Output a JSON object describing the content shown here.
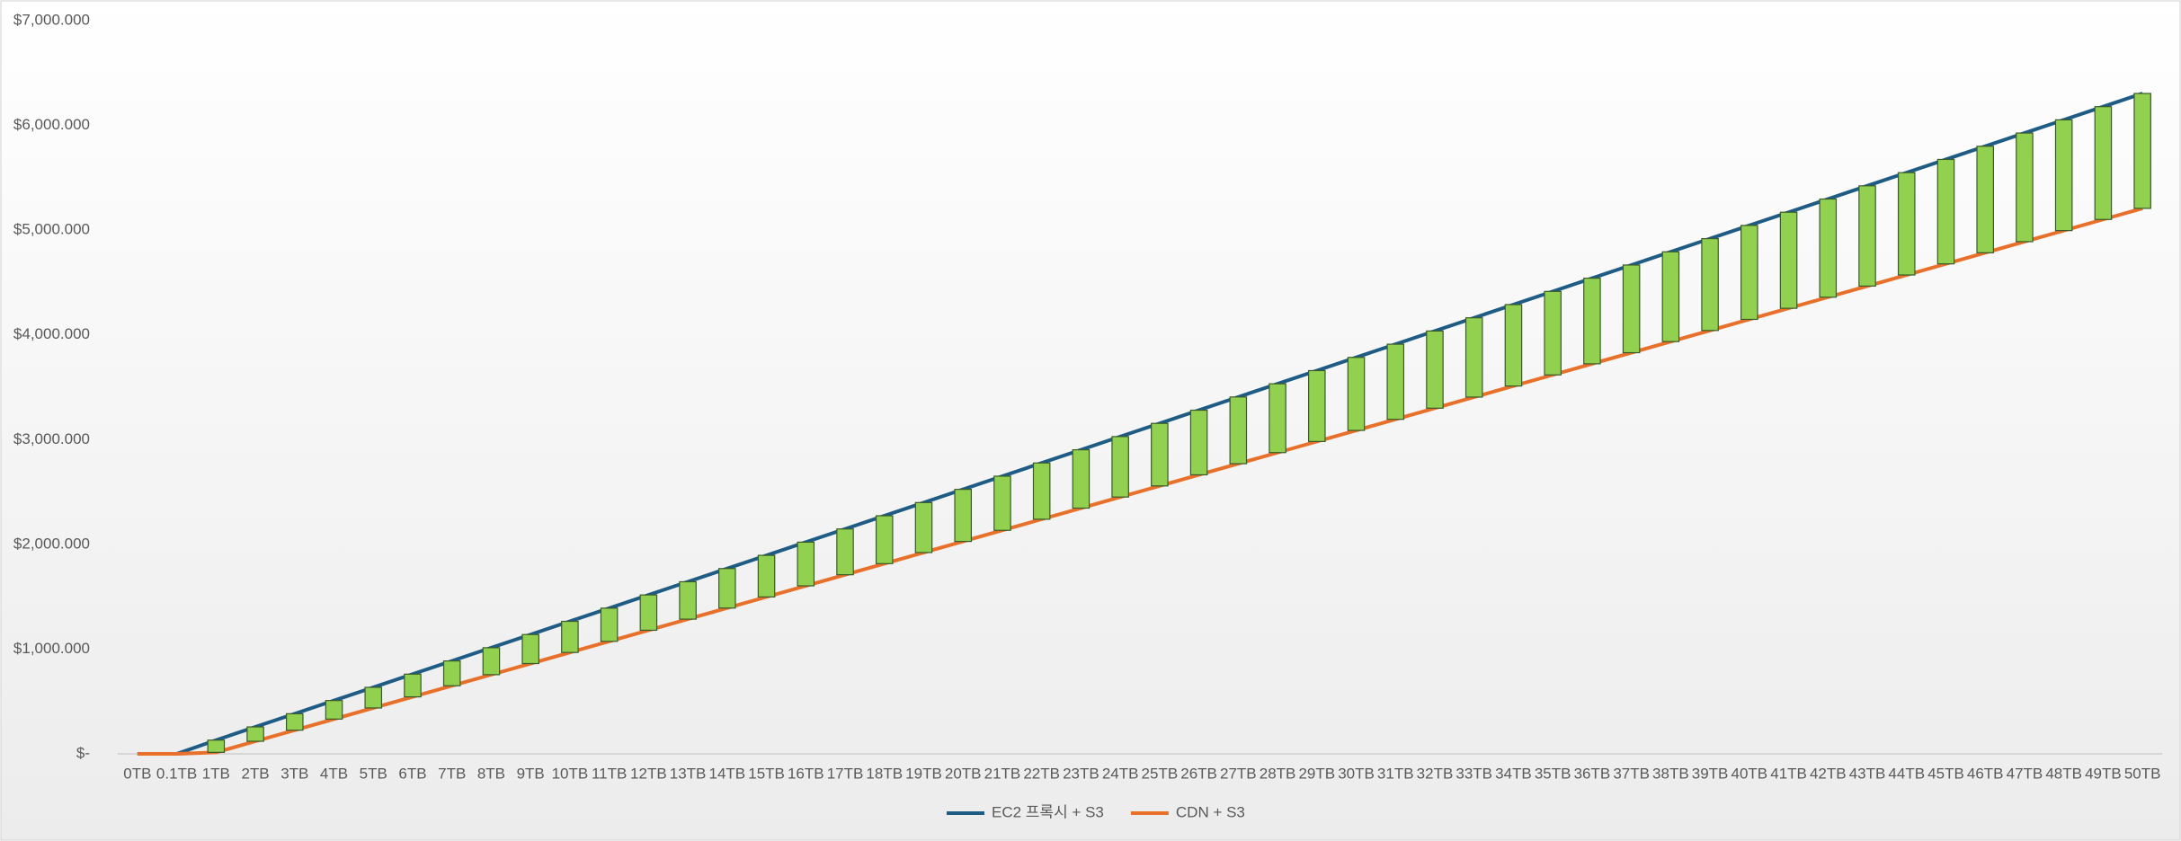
{
  "chart_data": {
    "type": "line",
    "categories": [
      "0TB",
      "0.1TB",
      "1TB",
      "2TB",
      "3TB",
      "4TB",
      "5TB",
      "6TB",
      "7TB",
      "8TB",
      "9TB",
      "10TB",
      "11TB",
      "12TB",
      "13TB",
      "14TB",
      "15TB",
      "16TB",
      "17TB",
      "18TB",
      "19TB",
      "20TB",
      "21TB",
      "22TB",
      "23TB",
      "24TB",
      "25TB",
      "26TB",
      "27TB",
      "28TB",
      "29TB",
      "30TB",
      "31TB",
      "32TB",
      "33TB",
      "34TB",
      "35TB",
      "36TB",
      "37TB",
      "38TB",
      "39TB",
      "40TB",
      "41TB",
      "42TB",
      "43TB",
      "44TB",
      "45TB",
      "46TB",
      "47TB",
      "48TB",
      "49TB",
      "50TB"
    ],
    "series": [
      {
        "name": "EC2 프록시 + S3",
        "color": "#1f5c85",
        "values": [
          0,
          0,
          131,
          257,
          383,
          509,
          635,
          761,
          887,
          1013,
          1139,
          1265,
          1391,
          1517,
          1643,
          1769,
          1895,
          2021,
          2147,
          2273,
          2399,
          2525,
          2651,
          2777,
          2903,
          3029,
          3155,
          3281,
          3407,
          3533,
          3659,
          3785,
          3911,
          4037,
          4163,
          4289,
          4415,
          4541,
          4667,
          4793,
          4919,
          5045,
          5171,
          5297,
          5423,
          5549,
          5675,
          5801,
          5927,
          6053,
          6179,
          6305
        ]
      },
      {
        "name": "CDN + S3",
        "color": "#e8702a",
        "values": [
          0,
          0,
          14,
          120,
          226,
          332,
          438,
          544,
          650,
          756,
          862,
          968,
          1074,
          1180,
          1286,
          1392,
          1498,
          1604,
          1710,
          1816,
          1922,
          2028,
          2134,
          2240,
          2346,
          2452,
          2558,
          2664,
          2770,
          2876,
          2982,
          3088,
          3194,
          3300,
          3406,
          3512,
          3618,
          3724,
          3830,
          3936,
          4042,
          4148,
          4254,
          4360,
          4466,
          4572,
          4678,
          4784,
          4890,
          4996,
          5102,
          5208
        ]
      }
    ],
    "up_down_bars": {
      "color": "#92d050"
    },
    "ylim": [
      0,
      7000
    ],
    "yticks": [
      {
        "value": 0,
        "label": "$-"
      },
      {
        "value": 1000,
        "label": "$1,000.000"
      },
      {
        "value": 2000,
        "label": "$2,000.000"
      },
      {
        "value": 3000,
        "label": "$3,000.000"
      },
      {
        "value": 4000,
        "label": "$4,000.000"
      },
      {
        "value": 5000,
        "label": "$5,000.000"
      },
      {
        "value": 6000,
        "label": "$6,000.000"
      },
      {
        "value": 7000,
        "label": "$7,000.000"
      }
    ],
    "legend": "bottom"
  }
}
